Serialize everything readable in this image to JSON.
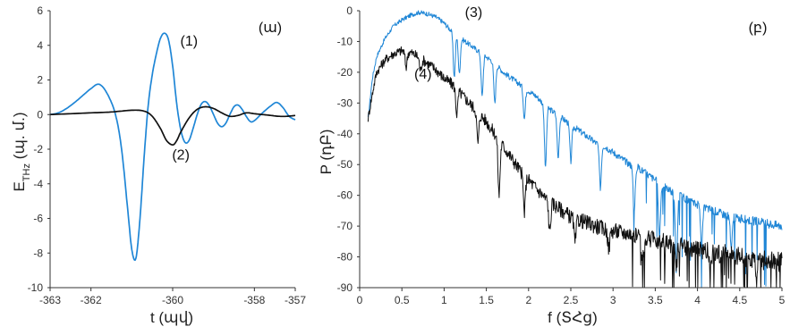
{
  "chart_data": [
    {
      "type": "line",
      "panel_label": "(ա)",
      "xlabel": "t (պվ)",
      "ylabel_main": "E",
      "ylabel_sub": "THz",
      "ylabel_rest": " (պ. մ.)",
      "xlim": [
        -363,
        -357
      ],
      "ylim": [
        -10,
        6
      ],
      "xticks": [
        "-363",
        "-362",
        "-360",
        "-358",
        "-357"
      ],
      "xtick_values": [
        -363,
        -362,
        -360,
        -358,
        -357
      ],
      "yticks": [
        "6",
        "4",
        "2",
        "0",
        "-2",
        "-4",
        "-6",
        "-8",
        "-10"
      ],
      "ytick_values": [
        6,
        4,
        2,
        0,
        -2,
        -4,
        -6,
        -8,
        -10
      ],
      "grid": false,
      "series": [
        {
          "color": "#1f86d6",
          "x": [
            -363,
            -362.8,
            -362.6,
            -362.4,
            -362.2,
            -362.0,
            -361.8,
            -361.6,
            -361.4,
            -361.25,
            -361.1,
            -361.0,
            -360.9,
            -360.8,
            -360.7,
            -360.6,
            -360.5,
            -360.4,
            -360.3,
            -360.2,
            -360.1,
            -360.0,
            -359.9,
            -359.8,
            -359.7,
            -359.6,
            -359.5,
            -359.4,
            -359.3,
            -359.2,
            -359.1,
            -359.0,
            -358.9,
            -358.8,
            -358.7,
            -358.6,
            -358.5,
            -358.4,
            -358.3,
            -358.2,
            -358.1,
            -358.0,
            -357.8,
            -357.6,
            -357.45,
            -357.3,
            -357.15,
            -357.0
          ],
          "y": [
            0.0,
            0.1,
            0.35,
            0.7,
            1.1,
            1.5,
            1.75,
            1.2,
            0.0,
            -2.0,
            -5.5,
            -7.8,
            -8.3,
            -6.0,
            -2.5,
            0.5,
            2.3,
            3.5,
            4.4,
            4.7,
            4.3,
            2.8,
            0.6,
            -0.9,
            -1.6,
            -1.5,
            -0.8,
            0.0,
            0.6,
            0.75,
            0.5,
            0.0,
            -0.5,
            -0.7,
            -0.5,
            0.0,
            0.45,
            0.55,
            0.3,
            -0.1,
            -0.4,
            -0.35,
            0.1,
            0.5,
            0.7,
            0.4,
            -0.1,
            -0.3
          ]
        },
        {
          "color": "#111111",
          "x": [
            -363,
            -362.5,
            -362.0,
            -361.5,
            -361.0,
            -360.7,
            -360.5,
            -360.3,
            -360.15,
            -360.0,
            -359.9,
            -359.8,
            -359.6,
            -359.4,
            -359.2,
            -359.0,
            -358.8,
            -358.6,
            -358.4,
            -358.2,
            -358.0,
            -357.8,
            -357.6,
            -357.4,
            -357.2,
            -357.0
          ],
          "y": [
            0.0,
            0.05,
            0.1,
            0.15,
            0.25,
            0.2,
            -0.1,
            -0.8,
            -1.5,
            -1.75,
            -1.5,
            -1.0,
            -0.2,
            0.3,
            0.45,
            0.35,
            0.1,
            -0.1,
            -0.05,
            0.1,
            0.05,
            0.0,
            -0.05,
            -0.1,
            -0.1,
            -0.05
          ]
        }
      ],
      "annotations": [
        {
          "text": "(1)",
          "x": -359.6,
          "y": 4.0
        },
        {
          "text": "(2)",
          "x": -359.8,
          "y": -2.6
        }
      ]
    },
    {
      "type": "line",
      "panel_label": "(բ)",
      "xlabel": "f (ՏՀց)",
      "ylabel": "P (դԲ)",
      "xlim": [
        0,
        5
      ],
      "ylim": [
        -90,
        0
      ],
      "xticks": [
        "0",
        "0.5",
        "1",
        "1.5",
        "2",
        "2.5",
        "3",
        "3.5",
        "4",
        "4.5",
        "5"
      ],
      "xtick_values": [
        0,
        0.5,
        1,
        1.5,
        2,
        2.5,
        3,
        3.5,
        4,
        4.5,
        5
      ],
      "yticks": [
        "0",
        "-10",
        "-20",
        "-30",
        "-40",
        "-50",
        "-60",
        "-70",
        "-80",
        "-90"
      ],
      "ytick_values": [
        0,
        -10,
        -20,
        -30,
        -40,
        -50,
        -60,
        -70,
        -80,
        -90
      ],
      "grid": false,
      "series": [
        {
          "color": "#1f86d6",
          "x": [
            0.1,
            0.15,
            0.2,
            0.3,
            0.4,
            0.5,
            0.6,
            0.7,
            0.8,
            0.9,
            1.0,
            1.1,
            1.2,
            1.3,
            1.4,
            1.5,
            1.6,
            1.7,
            1.8,
            1.9,
            2.0,
            2.1,
            2.2,
            2.3,
            2.4,
            2.5,
            2.6,
            2.7,
            2.8,
            2.9,
            3.0,
            3.1,
            3.2,
            3.3,
            3.4,
            3.5,
            3.6,
            3.7,
            3.8,
            3.9,
            4.0,
            4.1,
            4.2,
            4.3,
            4.4,
            4.5,
            4.6,
            4.7,
            4.8,
            4.9,
            5.0
          ],
          "y": [
            -35,
            -22,
            -15,
            -9,
            -5,
            -3,
            -1.5,
            -0.5,
            -1,
            -2,
            -4,
            -7,
            -9,
            -11,
            -13,
            -15,
            -17,
            -20,
            -22,
            -24,
            -26,
            -28,
            -31,
            -33,
            -35,
            -37,
            -39,
            -41,
            -43,
            -44,
            -46,
            -48,
            -50,
            -51,
            -53,
            -55,
            -57,
            -59,
            -60,
            -62,
            -63,
            -64,
            -65,
            -66,
            -67,
            -67.5,
            -68,
            -68.5,
            -69,
            -69.5,
            -70
          ],
          "dips": [
            [
              1.12,
              -14
            ],
            [
              1.18,
              -12
            ],
            [
              1.45,
              -14
            ],
            [
              1.6,
              -13
            ],
            [
              1.95,
              -10
            ],
            [
              2.2,
              -20
            ],
            [
              2.35,
              -14
            ],
            [
              2.5,
              -12
            ],
            [
              2.85,
              -14
            ],
            [
              3.25,
              -15
            ],
            [
              3.55,
              -18
            ],
            [
              3.75,
              -25
            ],
            [
              4.05,
              -12
            ],
            [
              4.4,
              -10
            ]
          ],
          "noise": 1.5
        },
        {
          "color": "#111111",
          "x": [
            0.1,
            0.15,
            0.2,
            0.3,
            0.4,
            0.5,
            0.6,
            0.7,
            0.8,
            0.9,
            1.0,
            1.1,
            1.2,
            1.3,
            1.4,
            1.5,
            1.6,
            1.7,
            1.8,
            1.9,
            2.0,
            2.1,
            2.2,
            2.3,
            2.4,
            2.5,
            2.6,
            2.7,
            2.8,
            2.9,
            3.0,
            3.1,
            3.2,
            3.3,
            3.4,
            3.5,
            3.6,
            3.7,
            3.8,
            3.9,
            4.0,
            4.1,
            4.2,
            4.3,
            4.4,
            4.5,
            4.6,
            4.7,
            4.8,
            4.9,
            5.0
          ],
          "y": [
            -35,
            -27,
            -20,
            -16,
            -14,
            -13,
            -13.5,
            -15,
            -17,
            -19,
            -22,
            -24,
            -27,
            -30,
            -33,
            -36,
            -40,
            -44,
            -48,
            -52,
            -55,
            -58,
            -61,
            -63,
            -65,
            -67,
            -68,
            -69,
            -70,
            -71,
            -71.5,
            -72,
            -72.5,
            -73,
            -74,
            -74.5,
            -75,
            -76,
            -76.5,
            -77,
            -77.5,
            -78,
            -78.5,
            -79,
            -79.5,
            -80,
            -80,
            -80.5,
            -81,
            -81,
            -81.5
          ],
          "dips": [
            [
              0.55,
              -5
            ],
            [
              0.72,
              -4
            ],
            [
              1.15,
              -8
            ],
            [
              1.4,
              -10
            ],
            [
              1.65,
              -18
            ],
            [
              1.95,
              -12
            ],
            [
              2.25,
              -10
            ],
            [
              2.55,
              -8
            ],
            [
              2.95,
              -6
            ],
            [
              3.35,
              -8
            ],
            [
              3.75,
              -6
            ],
            [
              4.15,
              -6
            ],
            [
              4.7,
              -6
            ]
          ],
          "noise": 3.5
        }
      ],
      "annotations": [
        {
          "text": "(3)",
          "x": 1.35,
          "y": -2
        },
        {
          "text": "(4)",
          "x": 0.75,
          "y": -22
        }
      ]
    }
  ]
}
